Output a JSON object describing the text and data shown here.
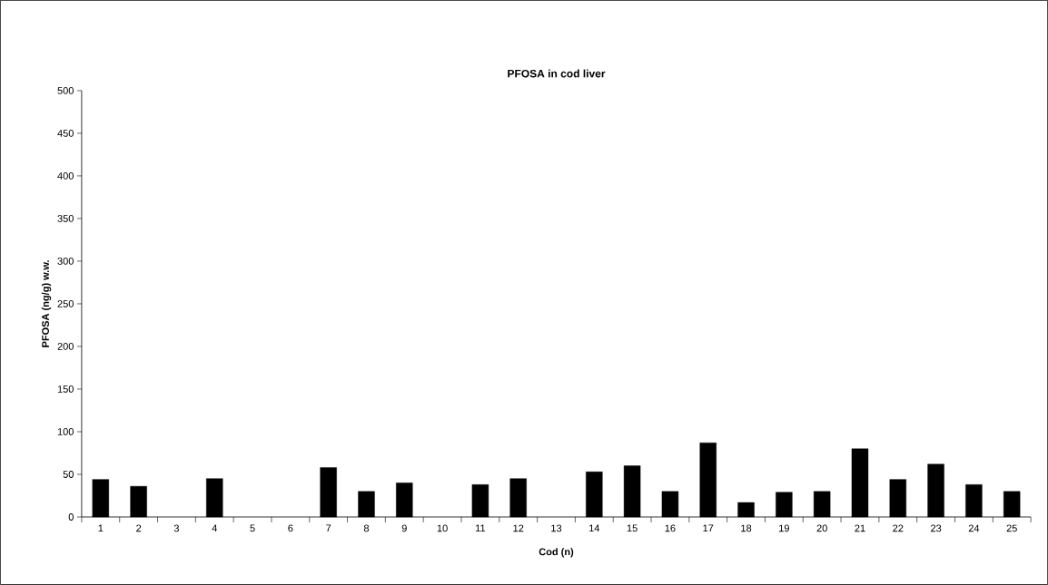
{
  "chart_data": {
    "type": "bar",
    "title": "PFOSA in cod liver",
    "xlabel": "Cod (n)",
    "ylabel": "PFOSA (ng/g) w.w.",
    "categories": [
      "1",
      "2",
      "3",
      "4",
      "5",
      "6",
      "7",
      "8",
      "9",
      "10",
      "11",
      "12",
      "13",
      "14",
      "15",
      "16",
      "17",
      "18",
      "19",
      "20",
      "21",
      "22",
      "23",
      "24",
      "25"
    ],
    "values": [
      44,
      36,
      null,
      45,
      null,
      null,
      58,
      30,
      40,
      null,
      38,
      45,
      null,
      53,
      60,
      30,
      87,
      17,
      29,
      30,
      80,
      44,
      62,
      38,
      30
    ],
    "color": "#000000",
    "ylim": [
      0,
      500
    ],
    "yticks": [
      0,
      50,
      100,
      150,
      200,
      250,
      300,
      350,
      400,
      450,
      500
    ],
    "grid": false
  }
}
